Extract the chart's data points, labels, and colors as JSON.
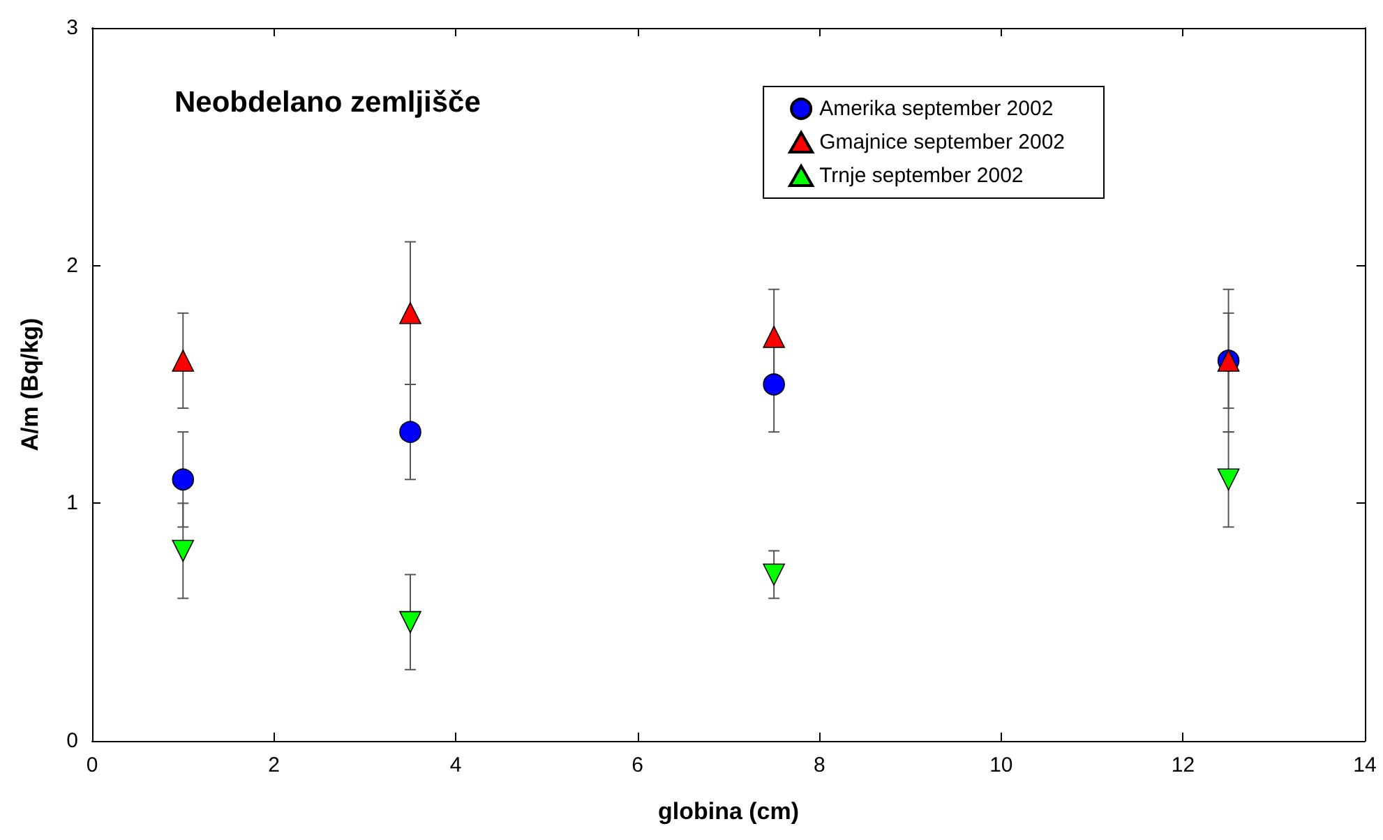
{
  "chart_data": {
    "type": "scatter",
    "title": "Neobdelano zemljišče",
    "xlabel": "globina (cm)",
    "ylabel": "A/m (Bq/kg)",
    "x": [
      1,
      3.5,
      7.5,
      12.5
    ],
    "series": [
      {
        "name": "Amerika september 2002",
        "color": "#0000ff",
        "marker": "circle",
        "values": [
          1.1,
          1.3,
          1.5,
          1.6
        ],
        "errors": [
          0.2,
          0.2,
          0.2,
          0.3
        ]
      },
      {
        "name": "Gmajnice september 2002",
        "color": "#ff0000",
        "marker": "triangle",
        "values": [
          1.6,
          1.8,
          1.7,
          1.6
        ],
        "errors": [
          0.2,
          0.3,
          0.2,
          0.2
        ]
      },
      {
        "name": "Trnje september 2002",
        "color": "#00ff00",
        "marker": "triangle-down",
        "values": [
          0.8,
          0.5,
          0.7,
          1.1
        ],
        "errors": [
          0.2,
          0.2,
          0.1,
          0.2
        ]
      }
    ],
    "xlim": [
      0,
      14
    ],
    "xticks": [
      0,
      2,
      4,
      6,
      8,
      10,
      12,
      14
    ],
    "ylim": [
      0,
      3
    ],
    "yticks": [
      0,
      1,
      2,
      3
    ],
    "grid": false,
    "legend": "top right"
  }
}
